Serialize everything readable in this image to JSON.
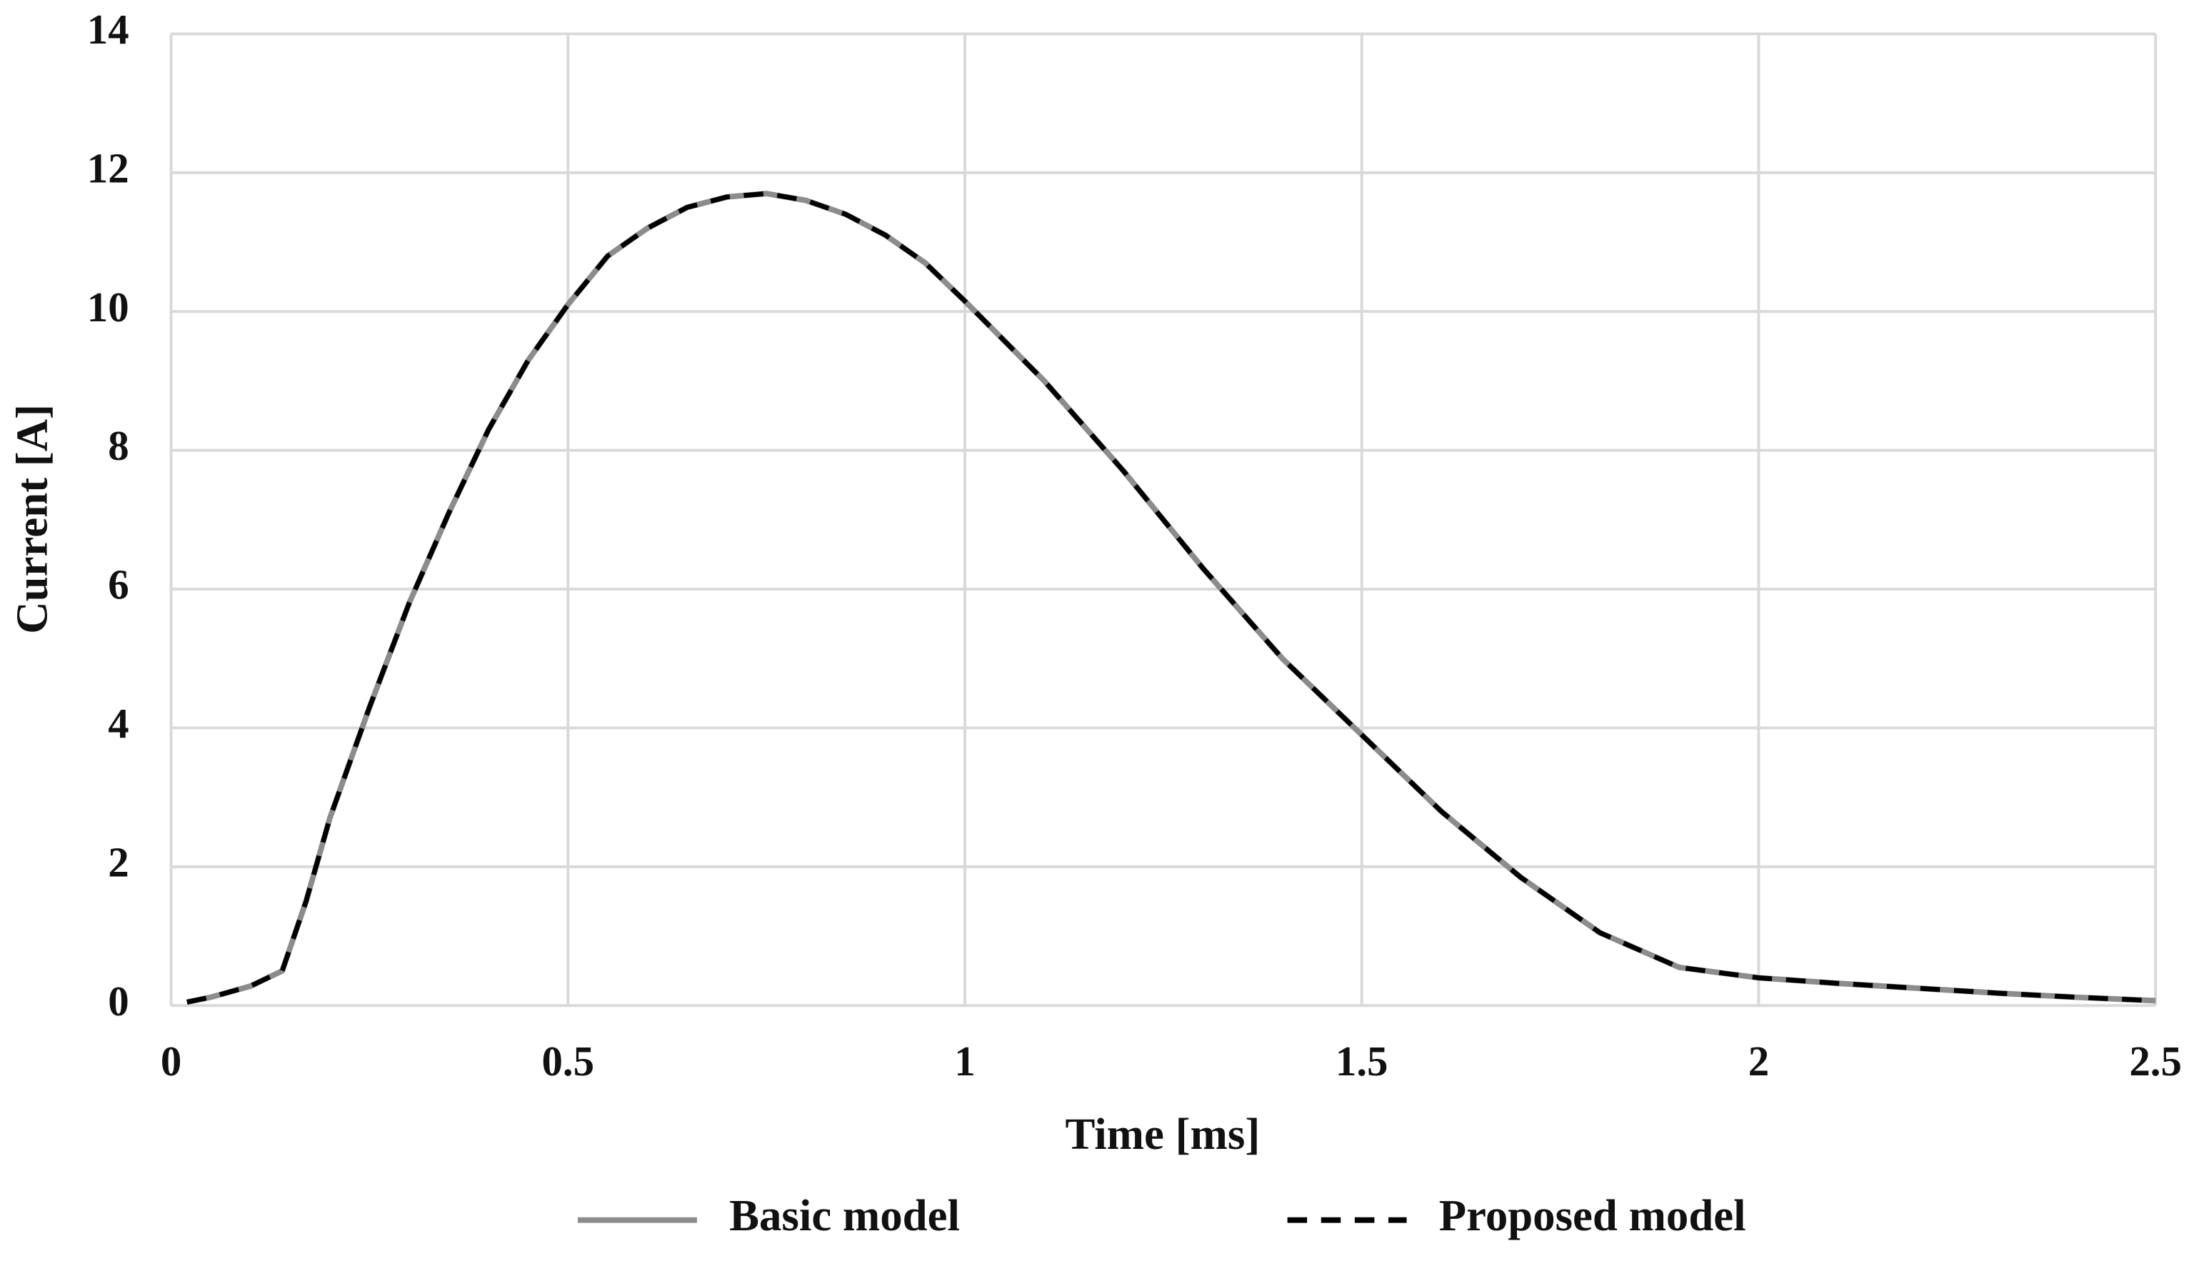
{
  "chart_data": {
    "type": "line",
    "x_label": "Time [ms]",
    "y_label": "Current [A]",
    "x": [
      0.02,
      0.05,
      0.1,
      0.14,
      0.17,
      0.2,
      0.25,
      0.3,
      0.35,
      0.4,
      0.45,
      0.5,
      0.55,
      0.6,
      0.65,
      0.7,
      0.75,
      0.8,
      0.85,
      0.9,
      0.95,
      1.0,
      1.1,
      1.2,
      1.3,
      1.4,
      1.5,
      1.6,
      1.7,
      1.8,
      1.9,
      2.0,
      2.1,
      2.2,
      2.3,
      2.4,
      2.5
    ],
    "series": [
      {
        "name": "Basic model",
        "color": "#8c8c8c",
        "dash": false,
        "values": [
          0.05,
          0.12,
          0.28,
          0.5,
          1.5,
          2.7,
          4.3,
          5.8,
          7.1,
          8.3,
          9.3,
          10.1,
          10.8,
          11.2,
          11.5,
          11.65,
          11.7,
          11.6,
          11.4,
          11.1,
          10.7,
          10.15,
          9.0,
          7.7,
          6.3,
          5.0,
          3.9,
          2.8,
          1.85,
          1.05,
          0.55,
          0.4,
          0.32,
          0.25,
          0.18,
          0.12,
          0.07
        ]
      },
      {
        "name": "Proposed model",
        "color": "#000000",
        "dash": true,
        "values": [
          0.05,
          0.12,
          0.28,
          0.5,
          1.5,
          2.7,
          4.3,
          5.8,
          7.1,
          8.3,
          9.3,
          10.1,
          10.8,
          11.2,
          11.5,
          11.65,
          11.7,
          11.6,
          11.4,
          11.1,
          10.7,
          10.15,
          9.0,
          7.7,
          6.3,
          5.0,
          3.9,
          2.8,
          1.85,
          1.05,
          0.55,
          0.4,
          0.32,
          0.25,
          0.18,
          0.12,
          0.07
        ]
      }
    ],
    "xlim": [
      0,
      2.5
    ],
    "xticks": [
      0,
      0.5,
      1,
      1.5,
      2,
      2.5
    ],
    "ylim": [
      0,
      14
    ],
    "yticks": [
      0,
      2,
      4,
      6,
      8,
      10,
      12,
      14
    ],
    "grid": true,
    "legend": "bottom"
  }
}
